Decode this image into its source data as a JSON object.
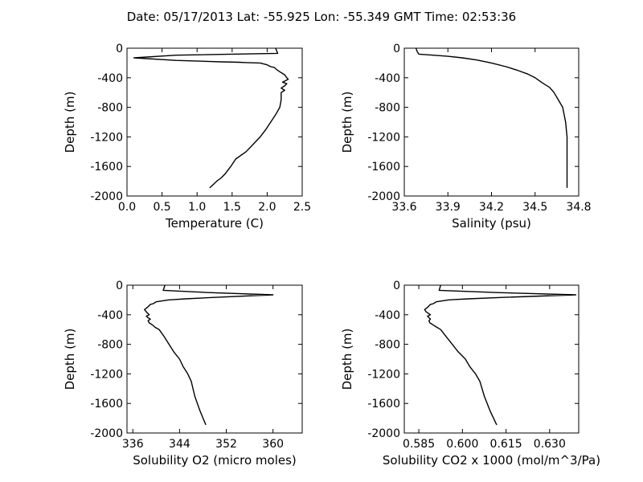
{
  "header": {
    "title": "Date: 05/17/2013  Lat:  -55.925 Lon:  -55.349  GMT Time: 02:53:36"
  },
  "chart_data": [
    {
      "type": "line",
      "xlabel": "Temperature (C)",
      "ylabel": "Depth (m)",
      "xlim": [
        0.0,
        2.5
      ],
      "ylim": [
        -2000,
        0
      ],
      "xticks": [
        "0.0",
        "0.5",
        "1.0",
        "1.5",
        "2.0",
        "2.5"
      ],
      "yticks": [
        "0",
        "-400",
        "-800",
        "-1200",
        "-1600",
        "-2000"
      ],
      "x": [
        2.12,
        2.15,
        0.7,
        0.1,
        0.7,
        1.35,
        1.6,
        1.7,
        1.9,
        2.0,
        2.05,
        2.1,
        2.15,
        2.2,
        2.25,
        2.28,
        2.3,
        2.26,
        2.22,
        2.28,
        2.25,
        2.2,
        2.25,
        2.2,
        2.2,
        2.18,
        2.12,
        2.05,
        1.98,
        1.9,
        1.8,
        1.7,
        1.55,
        1.48,
        1.4,
        1.35,
        1.28,
        1.18
      ],
      "y": [
        0,
        -70,
        -95,
        -130,
        -165,
        -185,
        -190,
        -195,
        -200,
        -225,
        -250,
        -260,
        -300,
        -330,
        -360,
        -400,
        -420,
        -440,
        -460,
        -480,
        -510,
        -540,
        -570,
        -600,
        -700,
        -800,
        -900,
        -1000,
        -1100,
        -1200,
        -1300,
        -1400,
        -1500,
        -1600,
        -1700,
        -1750,
        -1800,
        -1890
      ]
    },
    {
      "type": "line",
      "xlabel": "Salinity (psu)",
      "ylabel": "Depth (m)",
      "xlim": [
        33.6,
        34.8
      ],
      "ylim": [
        -2000,
        0
      ],
      "xticks": [
        "33.6",
        "33.9",
        "34.2",
        "34.5",
        "34.8"
      ],
      "yticks": [
        "0",
        "-400",
        "-800",
        "-1200",
        "-1600",
        "-2000"
      ],
      "x": [
        33.68,
        33.69,
        33.7,
        33.8,
        33.9,
        34.0,
        34.1,
        34.2,
        34.3,
        34.38,
        34.45,
        34.5,
        34.55,
        34.6,
        34.63,
        34.66,
        34.69,
        34.7,
        34.71,
        34.72,
        34.72,
        34.72,
        34.72
      ],
      "y": [
        0,
        -50,
        -80,
        -95,
        -110,
        -130,
        -160,
        -200,
        -250,
        -300,
        -350,
        -400,
        -470,
        -530,
        -600,
        -700,
        -800,
        -900,
        -1000,
        -1200,
        -1400,
        -1600,
        -1890
      ]
    },
    {
      "type": "line",
      "xlabel": "Solubility O2 (micro moles)",
      "ylabel": "Depth (m)",
      "xlim": [
        335,
        365
      ],
      "ylim": [
        -2000,
        0
      ],
      "xticks": [
        "336",
        "344",
        "352",
        "360"
      ],
      "yticks": [
        "0",
        "-400",
        "-800",
        "-1200",
        "-1600",
        "-2000"
      ],
      "x": [
        341.5,
        341.2,
        349.0,
        360.0,
        350.0,
        345.0,
        343.0,
        342.0,
        340.0,
        339.5,
        339.0,
        338.5,
        338.0,
        338.3,
        338.8,
        338.3,
        338.6,
        339.0,
        338.6,
        338.8,
        339.4,
        339.8,
        340.5,
        341.4,
        342.2,
        343.0,
        344.0,
        344.6,
        345.4,
        346.0,
        346.6,
        347.5,
        348.5
      ],
      "y": [
        0,
        -70,
        -100,
        -130,
        -165,
        -185,
        -195,
        -200,
        -225,
        -250,
        -260,
        -300,
        -330,
        -360,
        -400,
        -420,
        -440,
        -460,
        -480,
        -510,
        -540,
        -570,
        -600,
        -700,
        -800,
        -900,
        -1000,
        -1100,
        -1200,
        -1300,
        -1500,
        -1700,
        -1890
      ]
    },
    {
      "type": "line",
      "xlabel": "Solubility CO2 x 1000 (mol/m^3/Pa)",
      "ylabel": "Depth (m)",
      "xlim": [
        0.58,
        0.64
      ],
      "ylim": [
        -2000,
        0
      ],
      "xticks": [
        "0.585",
        "0.600",
        "0.615",
        "0.630"
      ],
      "yticks": [
        "0",
        "-400",
        "-800",
        "-1200",
        "-1600",
        "-2000"
      ],
      "x": [
        0.5925,
        0.592,
        0.612,
        0.639,
        0.614,
        0.602,
        0.597,
        0.595,
        0.591,
        0.59,
        0.589,
        0.588,
        0.587,
        0.5875,
        0.589,
        0.588,
        0.5885,
        0.589,
        0.5885,
        0.5888,
        0.59,
        0.5912,
        0.5925,
        0.5945,
        0.5965,
        0.5985,
        0.601,
        0.6025,
        0.6045,
        0.606,
        0.6075,
        0.6095,
        0.6118
      ],
      "y": [
        0,
        -70,
        -100,
        -130,
        -165,
        -185,
        -195,
        -200,
        -225,
        -250,
        -260,
        -300,
        -330,
        -360,
        -400,
        -420,
        -440,
        -460,
        -480,
        -510,
        -540,
        -570,
        -600,
        -700,
        -800,
        -900,
        -1000,
        -1100,
        -1200,
        -1300,
        -1500,
        -1700,
        -1890
      ]
    }
  ]
}
